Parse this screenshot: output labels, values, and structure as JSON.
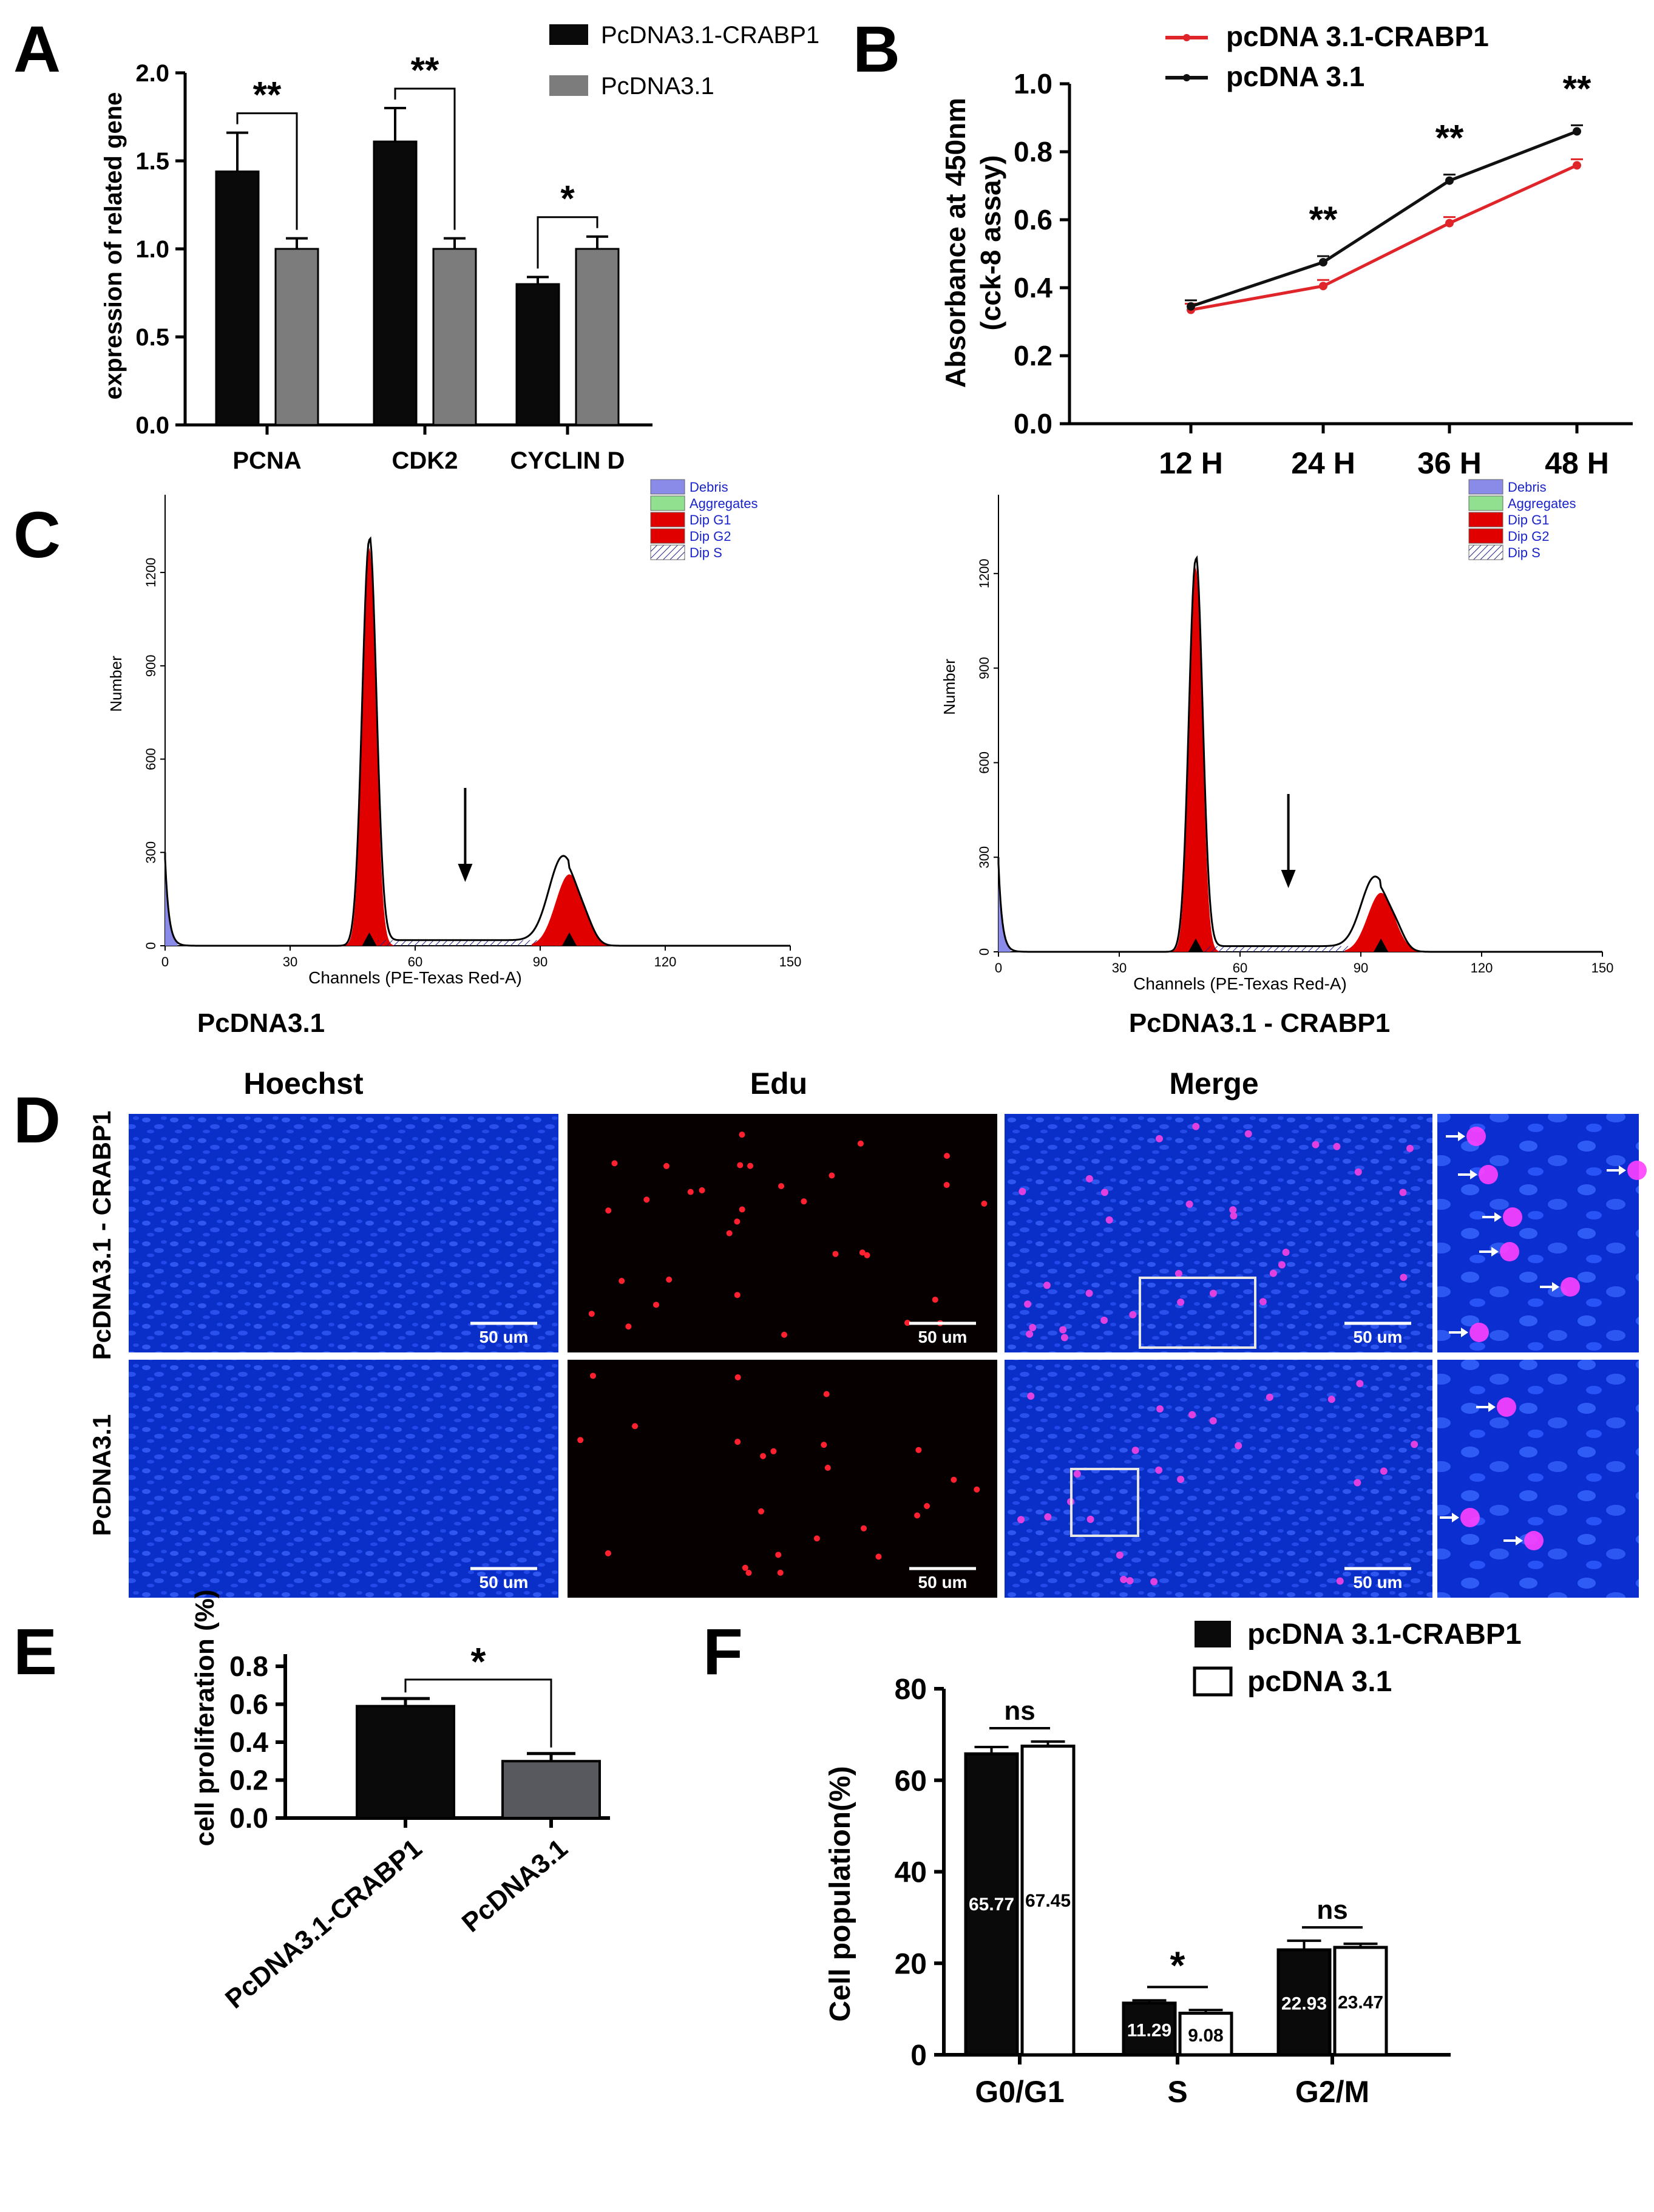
{
  "panel_labels": [
    "A",
    "B",
    "C",
    "D",
    "E",
    "F"
  ],
  "colors": {
    "black_bar": "#0a0a0a",
    "grey_bar": "#7c7c7c",
    "red": "#e0252a",
    "g1_fill": "#e00000",
    "debris": "#8a8ae8",
    "aggregates": "#90e090",
    "legend_text": "#1a24c8",
    "microscope_blue": "#0a2fc8",
    "bar_e2": "#58595f"
  },
  "chart_data": [
    {
      "panel": "A",
      "type": "bar",
      "categories": [
        "PCNA",
        "CDK2",
        "CYCLIN D"
      ],
      "series": [
        {
          "name": "PcDNA3.1-CRABP1",
          "values": [
            1.44,
            1.61,
            0.8
          ],
          "errors": [
            0.22,
            0.19,
            0.04
          ]
        },
        {
          "name": "PcDNA3.1",
          "values": [
            1.0,
            1.0,
            1.0
          ],
          "errors": [
            0.06,
            0.06,
            0.07
          ]
        }
      ],
      "ylabel": "expression of related gene",
      "ylim": [
        0,
        2.0
      ],
      "yticks": [
        "0.0",
        "0.5",
        "1.0",
        "1.5",
        "2.0"
      ],
      "significance": [
        "**",
        "**",
        "*"
      ]
    },
    {
      "panel": "B",
      "type": "line",
      "x": [
        "12 H",
        "24 H",
        "36 H",
        "48 H"
      ],
      "series": [
        {
          "name": "pcDNA 3.1-CRABP1",
          "values": [
            0.335,
            0.405,
            0.59,
            0.76
          ]
        },
        {
          "name": "pcDNA 3.1",
          "values": [
            0.345,
            0.475,
            0.715,
            0.86
          ]
        }
      ],
      "ylabel": "Absorbance at 450nm",
      "ylabel2": "(cck-8 assay)",
      "ylim": [
        0,
        1.0
      ],
      "yticks": [
        "0.0",
        "0.2",
        "0.4",
        "0.6",
        "0.8",
        "1.0"
      ],
      "significance": [
        "",
        "**",
        "**",
        "**"
      ]
    },
    {
      "panel": "C",
      "type": "histogram",
      "plots": [
        {
          "caption": "PcDNA3.1",
          "g1_peak_channel": 49,
          "g1_height": 1280,
          "g2_peak_channel": 97,
          "g2_height": 270
        },
        {
          "caption": "PcDNA3.1 - CRABP1",
          "g1_peak_channel": 49,
          "g1_height": 1220,
          "g2_peak_channel": 95,
          "g2_height": 220
        }
      ],
      "xlabel": "Channels (PE-Texas Red-A)",
      "ylabel": "Number",
      "xticks": [
        "0",
        "30",
        "60",
        "90",
        "120",
        "150"
      ],
      "yticks": [
        "0",
        "300",
        "600",
        "900",
        "1200"
      ],
      "legend": [
        "Debris",
        "Aggregates",
        "Dip G1",
        "Dip G2",
        "Dip S"
      ]
    },
    {
      "panel": "E",
      "type": "bar",
      "categories": [
        "PcDNA3.1-CRABP1",
        "PcDNA3.1"
      ],
      "values": [
        0.59,
        0.3
      ],
      "errors": [
        0.04,
        0.04
      ],
      "ylabel": "cell proliferation (%)",
      "ylim": [
        0,
        0.8
      ],
      "yticks": [
        "0.0",
        "0.2",
        "0.4",
        "0.6",
        "0.8"
      ],
      "significance": "*"
    },
    {
      "panel": "F",
      "type": "bar",
      "categories": [
        "G0/G1",
        "S",
        "G2/M"
      ],
      "series": [
        {
          "name": "pcDNA 3.1-CRABP1",
          "values": [
            65.77,
            11.29,
            22.93
          ],
          "errors": [
            1.5,
            0.6,
            2.0
          ]
        },
        {
          "name": "pcDNA 3.1",
          "values": [
            67.45,
            9.08,
            23.47
          ],
          "errors": [
            1.0,
            0.7,
            0.8
          ]
        }
      ],
      "ylabel": "Cell population(%)",
      "ylim": [
        0,
        80
      ],
      "yticks": [
        "0",
        "20",
        "40",
        "60",
        "80"
      ],
      "significance": [
        "ns",
        "*",
        "ns"
      ]
    }
  ],
  "panel_d": {
    "columns": [
      "Hoechst",
      "Edu",
      "Merge"
    ],
    "rows": [
      "PcDNA3.1 - CRABP1",
      "PcDNA3.1"
    ],
    "scale_bar": "50 um"
  }
}
